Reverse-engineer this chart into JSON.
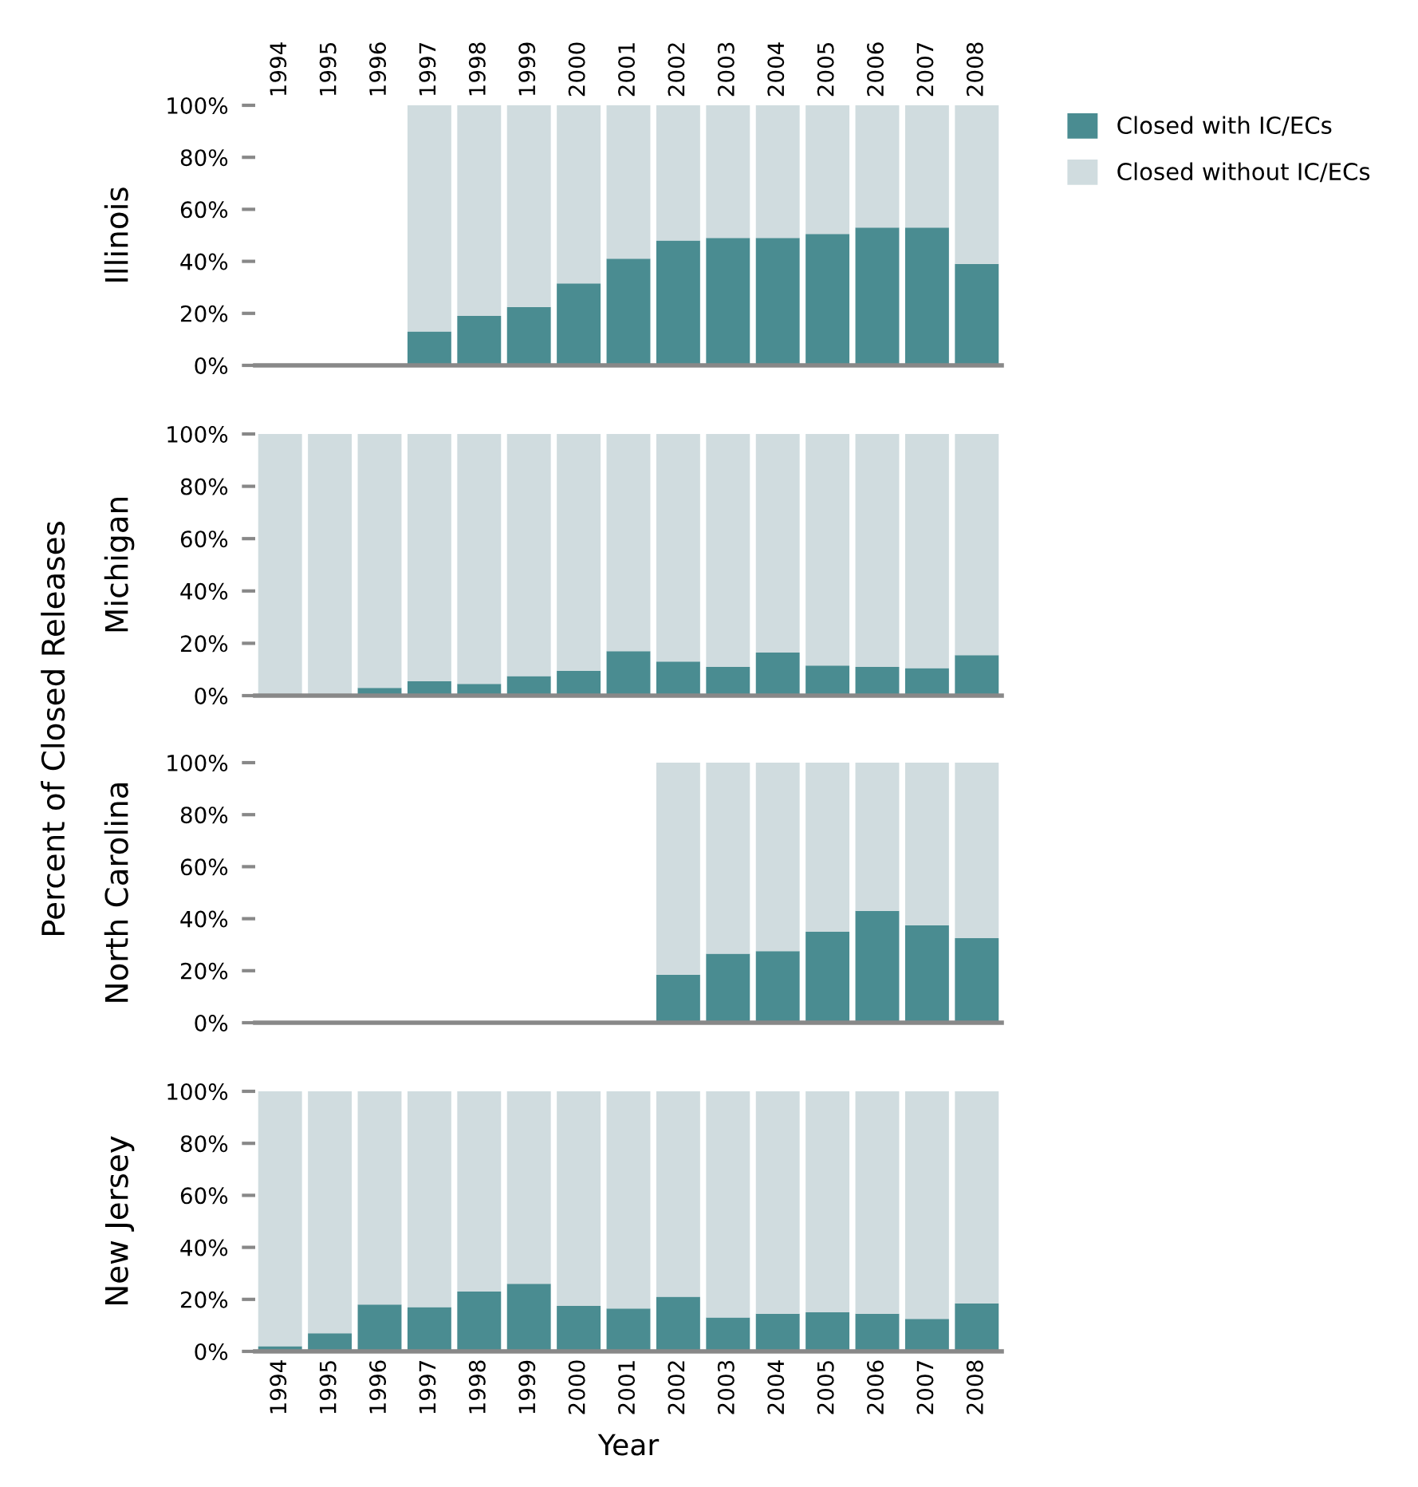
{
  "chart_data": [
    {
      "type": "bar",
      "stacked": true,
      "ylabel": "Illinois",
      "annotations": [
        "Percent of Closed Releases"
      ],
      "legend": "top right",
      "categories": [
        "1994",
        "1995",
        "1996",
        "1997",
        "1998",
        "1999",
        "2000",
        "2001",
        "2002",
        "2003",
        "2004",
        "2005",
        "2006",
        "2007",
        "2008"
      ],
      "series": [
        {
          "name": "Closed with IC/ECs",
          "color": "#4a8c91",
          "values": [
            null,
            null,
            null,
            13,
            19,
            22.5,
            31.5,
            41,
            48,
            49,
            49,
            50.5,
            53,
            53,
            39
          ]
        },
        {
          "name": "Closed without IC/ECs",
          "color": "#d0dcdf",
          "values": [
            null,
            null,
            null,
            87,
            81,
            77.5,
            68.5,
            59,
            52,
            51,
            51,
            49.5,
            47,
            47,
            61
          ]
        }
      ],
      "ylim": [
        0,
        100
      ],
      "yticks": [
        {
          "value": 0,
          "label": "0%"
        },
        {
          "value": 20,
          "label": "20%"
        },
        {
          "value": 40,
          "label": "40%"
        },
        {
          "value": 60,
          "label": "60%"
        },
        {
          "value": 80,
          "label": "80%"
        },
        {
          "value": 100,
          "label": "100%"
        }
      ]
    },
    {
      "type": "bar",
      "stacked": true,
      "ylabel": "Michigan",
      "tick_labels": "y",
      "categories": [
        "1994",
        "1995",
        "1996",
        "1997",
        "1998",
        "1999",
        "2000",
        "2001",
        "2002",
        "2003",
        "2004",
        "2005",
        "2006",
        "2007",
        "2008"
      ],
      "series": [
        {
          "color": "#4a8c91",
          "values": [
            0,
            0.5,
            3,
            5.5,
            4.5,
            7.5,
            9.5,
            17,
            13,
            11,
            16.5,
            11.5,
            11,
            10.5,
            15.5
          ]
        },
        {
          "color": "#d0dcdf",
          "values": [
            100,
            99.5,
            97,
            94.5,
            95.5,
            92.5,
            90.5,
            83,
            87,
            89,
            83.5,
            88.5,
            89,
            89.5,
            84.5
          ]
        }
      ],
      "ylim": [
        0,
        100
      ],
      "yticks": [
        {
          "value": 0,
          "label": "0%"
        },
        {
          "value": 20,
          "label": "20%"
        },
        {
          "value": 40,
          "label": "40%"
        },
        {
          "value": 60,
          "label": "60%"
        },
        {
          "value": 80,
          "label": "80%"
        },
        {
          "value": 100,
          "label": "100%"
        }
      ]
    },
    {
      "type": "bar",
      "stacked": true,
      "ylabel": "North Carolina",
      "tick_labels": "y",
      "categories": [
        "1994",
        "1995",
        "1996",
        "1997",
        "1998",
        "1999",
        "2000",
        "2001",
        "2002",
        "2003",
        "2004",
        "2005",
        "2006",
        "2007",
        "2008"
      ],
      "series": [
        {
          "color": "#4a8c91",
          "values": [
            null,
            null,
            null,
            null,
            null,
            null,
            null,
            null,
            18.5,
            26.5,
            27.5,
            35,
            43,
            37.5,
            32.5
          ]
        },
        {
          "color": "#d0dcdf",
          "values": [
            null,
            null,
            null,
            null,
            null,
            null,
            null,
            null,
            81.5,
            73.5,
            72.5,
            65,
            57,
            62.5,
            67.5
          ]
        }
      ],
      "ylim": [
        0,
        100
      ],
      "yticks": [
        {
          "value": 0,
          "label": "0%"
        },
        {
          "value": 20,
          "label": "20%"
        },
        {
          "value": 40,
          "label": "40%"
        },
        {
          "value": 60,
          "label": "60%"
        },
        {
          "value": 80,
          "label": "80%"
        },
        {
          "value": 100,
          "label": "100%"
        }
      ]
    },
    {
      "type": "bar",
      "stacked": true,
      "ylabel": "New Jersey",
      "xlabel": "Year",
      "categories": [
        "1994",
        "1995",
        "1996",
        "1997",
        "1998",
        "1999",
        "2000",
        "2001",
        "2002",
        "2003",
        "2004",
        "2005",
        "2006",
        "2007",
        "2008"
      ],
      "series": [
        {
          "color": "#4a8c91",
          "values": [
            2,
            7,
            18,
            17,
            23,
            26,
            17.5,
            16.5,
            21,
            13,
            14.5,
            15,
            14.5,
            12.5,
            18.5
          ]
        },
        {
          "color": "#d0dcdf",
          "values": [
            98,
            93,
            82,
            83,
            77,
            74,
            82.5,
            83.5,
            79,
            87,
            85.5,
            85,
            85.5,
            87.5,
            81.5
          ]
        }
      ],
      "ylim": [
        0,
        100
      ],
      "yticks": [
        {
          "value": 0,
          "label": "0%"
        },
        {
          "value": 20,
          "label": "20%"
        },
        {
          "value": 40,
          "label": "40%"
        },
        {
          "value": 60,
          "label": "60%"
        },
        {
          "value": 80,
          "label": "80%"
        },
        {
          "value": 100,
          "label": "100%"
        }
      ]
    }
  ]
}
